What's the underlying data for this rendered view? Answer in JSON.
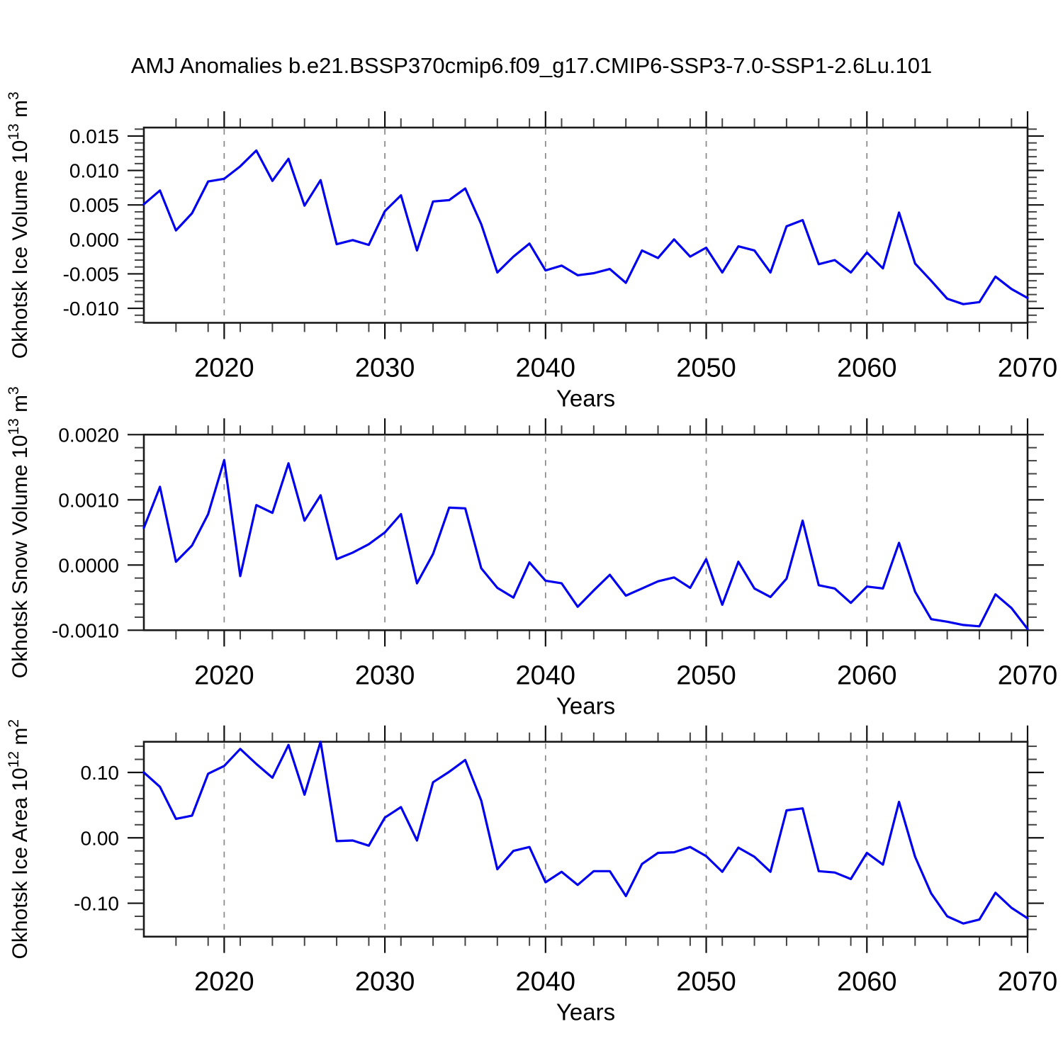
{
  "title": "AMJ Anomalies b.e21.BSSP370cmip6.f09_g17.CMIP6-SSP3-7.0-SSP1-2.6Lu.101",
  "colors": {
    "line": "#0000EE",
    "grid": "#888888",
    "axis": "#1a1a1a",
    "minor_tick": "#444444",
    "background": "#ffffff"
  },
  "chart_data": [
    {
      "type": "line",
      "panel": "ice-volume",
      "ylabel": "Okhotsk Ice Volume 10^13 m^3",
      "ylabel_parts": [
        {
          "t": "Okhotsk Ice Volume 10"
        },
        {
          "s": "13"
        },
        {
          "t": " m"
        },
        {
          "s": "3"
        }
      ],
      "xlabel": "Years",
      "xlim": [
        2015,
        2070
      ],
      "ylim": [
        -0.0121,
        0.01623
      ],
      "xticks": [
        2020,
        2030,
        2040,
        2050,
        2060,
        2070
      ],
      "xtick_labels": [
        "2020",
        "2030",
        "2040",
        "2050",
        "2060",
        "2070"
      ],
      "x_minor_step": 2,
      "grid_x": [
        2020,
        2030,
        2040,
        2050,
        2060
      ],
      "yticks": [
        0.015,
        0.01,
        0.005,
        0.0,
        -0.005,
        -0.01
      ],
      "ytick_labels": [
        "0.015",
        "0.010",
        "0.005",
        "0.000",
        "-0.005",
        "-0.010"
      ],
      "y_minor_step": 0.001,
      "x": [
        2015,
        2016,
        2017,
        2018,
        2019,
        2020,
        2021,
        2022,
        2023,
        2024,
        2025,
        2026,
        2027,
        2028,
        2029,
        2030,
        2031,
        2032,
        2033,
        2034,
        2035,
        2036,
        2037,
        2038,
        2039,
        2040,
        2041,
        2042,
        2043,
        2044,
        2045,
        2046,
        2047,
        2048,
        2049,
        2050,
        2051,
        2052,
        2053,
        2054,
        2055,
        2056,
        2057,
        2058,
        2059,
        2060,
        2061,
        2062,
        2063,
        2064,
        2065,
        2066,
        2067,
        2068,
        2069,
        2070
      ],
      "values": [
        0.0051,
        0.0071,
        0.0013,
        0.0038,
        0.0084,
        0.0088,
        0.0106,
        0.0129,
        0.0085,
        0.0117,
        0.0049,
        0.0086,
        -0.0007,
        -0.0001,
        -0.0008,
        0.0041,
        0.0064,
        -0.0016,
        0.0055,
        0.0057,
        0.0074,
        0.0022,
        -0.0048,
        -0.0025,
        -0.0006,
        -0.0045,
        -0.0038,
        -0.0052,
        -0.0049,
        -0.0043,
        -0.0063,
        -0.0016,
        -0.0027,
        0.0,
        -0.0025,
        -0.0012,
        -0.0048,
        -0.001,
        -0.0016,
        -0.0048,
        0.0019,
        0.0028,
        -0.0036,
        -0.003,
        -0.0048,
        -0.0019,
        -0.0042,
        0.0039,
        -0.0035,
        -0.006,
        -0.0086,
        -0.0094,
        -0.0091,
        -0.0054,
        -0.0072,
        -0.0085
      ]
    },
    {
      "type": "line",
      "panel": "snow-volume",
      "ylabel": "Okhotsk Snow Volume 10^13 m^3",
      "ylabel_parts": [
        {
          "t": "Okhotsk Snow Volume 10"
        },
        {
          "s": "13"
        },
        {
          "t": " m"
        },
        {
          "s": "3"
        }
      ],
      "xlabel": "Years",
      "xlim": [
        2015,
        2070
      ],
      "ylim": [
        -0.001,
        0.002
      ],
      "xticks": [
        2020,
        2030,
        2040,
        2050,
        2060,
        2070
      ],
      "xtick_labels": [
        "2020",
        "2030",
        "2040",
        "2050",
        "2060",
        "2070"
      ],
      "x_minor_step": 2,
      "grid_x": [
        2020,
        2030,
        2040,
        2050,
        2060
      ],
      "yticks": [
        0.002,
        0.001,
        0.0,
        -0.001
      ],
      "ytick_labels": [
        "0.0020",
        "0.0010",
        "0.0000",
        "-0.0010"
      ],
      "y_minor_step": 0.0002,
      "x": [
        2015,
        2016,
        2017,
        2018,
        2019,
        2020,
        2021,
        2022,
        2023,
        2024,
        2025,
        2026,
        2027,
        2028,
        2029,
        2030,
        2031,
        2032,
        2033,
        2034,
        2035,
        2036,
        2037,
        2038,
        2039,
        2040,
        2041,
        2042,
        2043,
        2044,
        2045,
        2046,
        2047,
        2048,
        2049,
        2050,
        2051,
        2052,
        2053,
        2054,
        2055,
        2056,
        2057,
        2058,
        2059,
        2060,
        2061,
        2062,
        2063,
        2064,
        2065,
        2066,
        2067,
        2068,
        2069,
        2070
      ],
      "values": [
        0.00057,
        0.0012,
        5e-05,
        0.0003,
        0.00078,
        0.00161,
        -0.00017,
        0.00092,
        0.0008,
        0.00156,
        0.00068,
        0.00107,
        9e-05,
        0.00019,
        0.00032,
        0.0005,
        0.00078,
        -0.00028,
        0.00017,
        0.00088,
        0.00087,
        -5e-05,
        -0.00035,
        -0.0005,
        4e-05,
        -0.00024,
        -0.00028,
        -0.00064,
        -0.00039,
        -0.00015,
        -0.00047,
        -0.00036,
        -0.00025,
        -0.00019,
        -0.00035,
        9e-05,
        -0.00061,
        5e-05,
        -0.00036,
        -0.00049,
        -0.00021,
        0.00068,
        -0.00031,
        -0.00036,
        -0.00058,
        -0.00033,
        -0.00036,
        0.00034,
        -0.00041,
        -0.00083,
        -0.00087,
        -0.00092,
        -0.00094,
        -0.00045,
        -0.00066,
        -0.00098
      ]
    },
    {
      "type": "line",
      "panel": "ice-area",
      "ylabel": "Okhotsk Ice Area 10^12 m^2",
      "ylabel_parts": [
        {
          "t": "Okhotsk Ice Area 10"
        },
        {
          "s": "12"
        },
        {
          "t": " m"
        },
        {
          "s": "2"
        }
      ],
      "xlabel": "Years",
      "xlim": [
        2015,
        2070
      ],
      "ylim": [
        -0.1511,
        0.1469
      ],
      "xticks": [
        2020,
        2030,
        2040,
        2050,
        2060,
        2070
      ],
      "xtick_labels": [
        "2020",
        "2030",
        "2040",
        "2050",
        "2060",
        "2070"
      ],
      "x_minor_step": 2,
      "grid_x": [
        2020,
        2030,
        2040,
        2050,
        2060
      ],
      "yticks": [
        0.1,
        0.0,
        -0.1
      ],
      "ytick_labels": [
        "0.10",
        "0.00",
        "-0.10"
      ],
      "y_minor_step": 0.02,
      "x": [
        2015,
        2016,
        2017,
        2018,
        2019,
        2020,
        2021,
        2022,
        2023,
        2024,
        2025,
        2026,
        2027,
        2028,
        2029,
        2030,
        2031,
        2032,
        2033,
        2034,
        2035,
        2036,
        2037,
        2038,
        2039,
        2040,
        2041,
        2042,
        2043,
        2044,
        2045,
        2046,
        2047,
        2048,
        2049,
        2050,
        2051,
        2052,
        2053,
        2054,
        2055,
        2056,
        2057,
        2058,
        2059,
        2060,
        2061,
        2062,
        2063,
        2064,
        2065,
        2066,
        2067,
        2068,
        2069,
        2070
      ],
      "values": [
        0.1,
        0.078,
        0.029,
        0.034,
        0.098,
        0.11,
        0.136,
        0.113,
        0.092,
        0.142,
        0.066,
        0.147,
        -0.005,
        -0.004,
        -0.012,
        0.031,
        0.047,
        -0.004,
        0.085,
        0.101,
        0.119,
        0.057,
        -0.048,
        -0.02,
        -0.014,
        -0.068,
        -0.052,
        -0.072,
        -0.051,
        -0.051,
        -0.089,
        -0.04,
        -0.023,
        -0.022,
        -0.014,
        -0.028,
        -0.052,
        -0.015,
        -0.029,
        -0.052,
        0.042,
        0.045,
        -0.051,
        -0.053,
        -0.063,
        -0.023,
        -0.041,
        0.055,
        -0.029,
        -0.085,
        -0.12,
        -0.131,
        -0.125,
        -0.084,
        -0.107,
        -0.123
      ]
    }
  ]
}
